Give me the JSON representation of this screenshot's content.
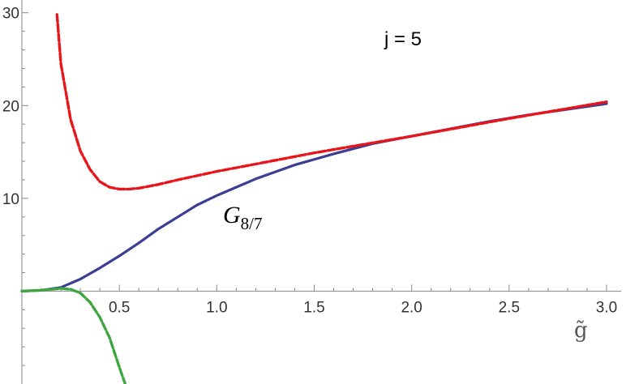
{
  "chart_data": {
    "type": "line",
    "title": "",
    "xlabel": "g̃",
    "ylabel": "",
    "annotation": "j = 5",
    "curve_label": {
      "main": "G",
      "sub": "8/7"
    },
    "xlim": [
      0,
      3.05
    ],
    "ylim": [
      -10,
      30.5
    ],
    "x_ticks": [
      {
        "v": 0.5,
        "label": "0.5"
      },
      {
        "v": 1.0,
        "label": "1.0"
      },
      {
        "v": 1.5,
        "label": "1.5"
      },
      {
        "v": 2.0,
        "label": "2.0"
      },
      {
        "v": 2.5,
        "label": "2.5"
      },
      {
        "v": 3.0,
        "label": "3.0"
      }
    ],
    "y_ticks": [
      {
        "v": 10,
        "label": "10"
      },
      {
        "v": 20,
        "label": "20"
      },
      {
        "v": 30,
        "label": "30"
      }
    ],
    "grid": false,
    "series": [
      {
        "name": "G_{8/7}",
        "color": "#3a3e94",
        "style": "solid",
        "x": [
          0,
          0.1,
          0.2,
          0.3,
          0.4,
          0.5,
          0.6,
          0.7,
          0.8,
          0.9,
          1.0,
          1.2,
          1.4,
          1.6,
          1.8,
          2.0,
          2.2,
          2.4,
          2.6,
          2.8,
          3.0
        ],
        "y": [
          0,
          0.1,
          0.4,
          1.3,
          2.5,
          3.8,
          5.2,
          6.7,
          8.0,
          9.3,
          10.3,
          12.1,
          13.6,
          14.8,
          15.9,
          16.7,
          17.5,
          18.3,
          19.0,
          19.6,
          20.2
        ]
      },
      {
        "name": "",
        "color": "#e8151a",
        "style": "dashed",
        "x": [
          0.18,
          0.2,
          0.25,
          0.3,
          0.35,
          0.4,
          0.45,
          0.5,
          0.55,
          0.6,
          0.7,
          0.8,
          1.0,
          1.2,
          1.5,
          2.0,
          2.5,
          3.0
        ],
        "y": [
          29.8,
          24.5,
          18.5,
          15.1,
          13.1,
          11.8,
          11.2,
          11.0,
          11.0,
          11.1,
          11.5,
          12.0,
          12.9,
          13.7,
          14.9,
          16.7,
          18.6,
          20.4
        ]
      },
      {
        "name": "",
        "color": "#3fa63f",
        "style": "dashed",
        "x": [
          0,
          0.1,
          0.2,
          0.25,
          0.3,
          0.35,
          0.4,
          0.45,
          0.5,
          0.53
        ],
        "y": [
          0,
          0.1,
          0.3,
          0.2,
          -0.2,
          -1.2,
          -2.8,
          -5.0,
          -8.2,
          -10.0
        ]
      }
    ]
  }
}
